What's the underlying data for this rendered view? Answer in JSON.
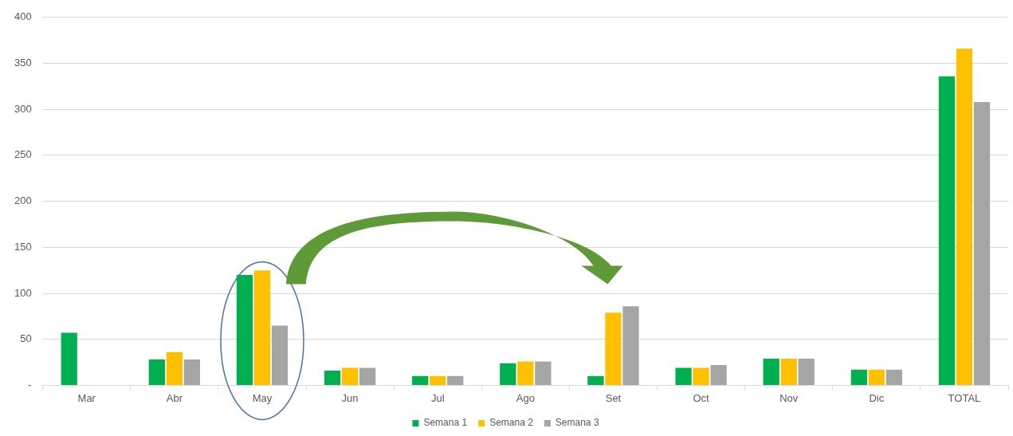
{
  "chart_data": {
    "type": "bar",
    "categories": [
      "Mar",
      "Abr",
      "May",
      "Jun",
      "Jul",
      "Ago",
      "Set",
      "Oct",
      "Nov",
      "Dic",
      "TOTAL"
    ],
    "series": [
      {
        "name": "Semana 1",
        "color": "#00b050",
        "values": [
          57,
          28,
          120,
          16,
          10,
          24,
          10,
          19,
          29,
          17,
          336
        ]
      },
      {
        "name": "Semana 2",
        "color": "#ffc000",
        "values": [
          null,
          36,
          125,
          19,
          10,
          26,
          79,
          19,
          29,
          17,
          366
        ]
      },
      {
        "name": "Semana 3",
        "color": "#a5a5a5",
        "values": [
          null,
          28,
          65,
          19,
          10,
          26,
          86,
          22,
          29,
          17,
          308
        ]
      }
    ],
    "ylim": [
      0,
      400
    ],
    "yticks": [
      {
        "value": 0,
        "label": "-"
      },
      50,
      100,
      150,
      200,
      250,
      300,
      350,
      400
    ],
    "grid": "y",
    "legend": "bottom"
  }
}
